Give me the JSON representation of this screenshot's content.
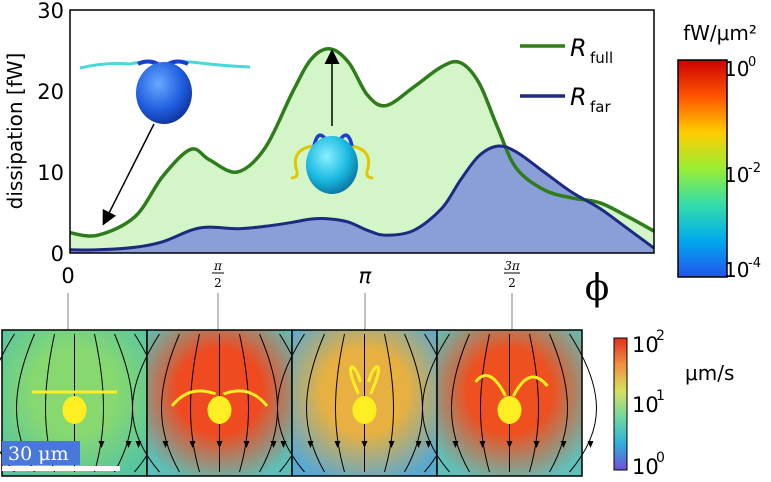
{
  "chart_data": {
    "type": "area",
    "ylabel": "dissipation [fW]",
    "xlabel": "ϕ",
    "xlim": [
      0,
      6.2832
    ],
    "ylim": [
      0,
      30
    ],
    "yticks": [
      "0",
      "10",
      "20",
      "30"
    ],
    "xticks": [
      {
        "value": 0,
        "label": "0"
      },
      {
        "value": 1.5708,
        "label": "π/2"
      },
      {
        "value": 3.1416,
        "label": "π"
      },
      {
        "value": 4.7124,
        "label": "3π/2"
      }
    ],
    "legend_position": "top-right",
    "series": [
      {
        "name": "R full",
        "color": "#2e7d1a",
        "fill": "#d3f5c8",
        "x": [
          0,
          0.3,
          0.7,
          1.0,
          1.3,
          1.5,
          1.8,
          2.1,
          2.4,
          2.6,
          2.8,
          3.0,
          3.2,
          3.4,
          3.7,
          4.0,
          4.2,
          4.4,
          4.6,
          4.8,
          5.1,
          5.4,
          5.7,
          6.0,
          6.2832
        ],
        "values": [
          2.5,
          2.2,
          4.5,
          9.5,
          12.8,
          11.5,
          10.0,
          13.0,
          20.0,
          24.0,
          25.2,
          23.5,
          19.5,
          18.2,
          20.5,
          23.0,
          23.5,
          21.0,
          15.5,
          10.5,
          7.8,
          6.8,
          6.2,
          4.5,
          2.7
        ]
      },
      {
        "name": "R far",
        "color": "#1c2a80",
        "fill": "#8a9ed8",
        "x": [
          0,
          0.3,
          0.7,
          1.0,
          1.3,
          1.5,
          1.8,
          2.1,
          2.4,
          2.6,
          2.8,
          3.0,
          3.2,
          3.4,
          3.7,
          4.0,
          4.2,
          4.4,
          4.6,
          4.8,
          5.1,
          5.4,
          5.7,
          6.0,
          6.2832
        ],
        "values": [
          0.4,
          0.4,
          0.7,
          1.4,
          2.8,
          3.2,
          3.0,
          3.3,
          3.8,
          4.2,
          4.2,
          3.8,
          2.8,
          2.2,
          2.8,
          5.5,
          9.0,
          12.0,
          13.2,
          12.5,
          10.0,
          7.5,
          5.5,
          3.0,
          0.6
        ]
      }
    ]
  },
  "legend": {
    "full": {
      "main": "R",
      "sub": "full"
    },
    "far": {
      "main": "R",
      "sub": "far"
    }
  },
  "colorbar_top": {
    "unit": "fW/μm²",
    "ticks": [
      {
        "base": "10",
        "exp": "0"
      },
      {
        "base": "10",
        "exp": "-2"
      },
      {
        "base": "10",
        "exp": "-4"
      }
    ],
    "colors": [
      "#cc0000",
      "#ff5500",
      "#ffcc00",
      "#99ee33",
      "#33ddaa",
      "#00aaee",
      "#2255ee"
    ]
  },
  "colorbar_bottom": {
    "unit": "μm/s",
    "ticks": [
      {
        "base": "10",
        "exp": "2"
      },
      {
        "base": "10",
        "exp": "1"
      },
      {
        "base": "10",
        "exp": "0"
      }
    ],
    "colors": [
      "#e03020",
      "#f09040",
      "#d8e060",
      "#70d8a0",
      "#30b0d8",
      "#7050d8"
    ]
  },
  "scalebar": {
    "label": "30 μm"
  },
  "flow_panels": [
    {
      "bg": "#56c6a0",
      "hot": "#88d870"
    },
    {
      "bg": "#5cc0b8",
      "hot": "#f04a20"
    },
    {
      "bg": "#5aa8d0",
      "hot": "#e8b040"
    },
    {
      "bg": "#60c0b8",
      "hot": "#ee5020"
    }
  ]
}
